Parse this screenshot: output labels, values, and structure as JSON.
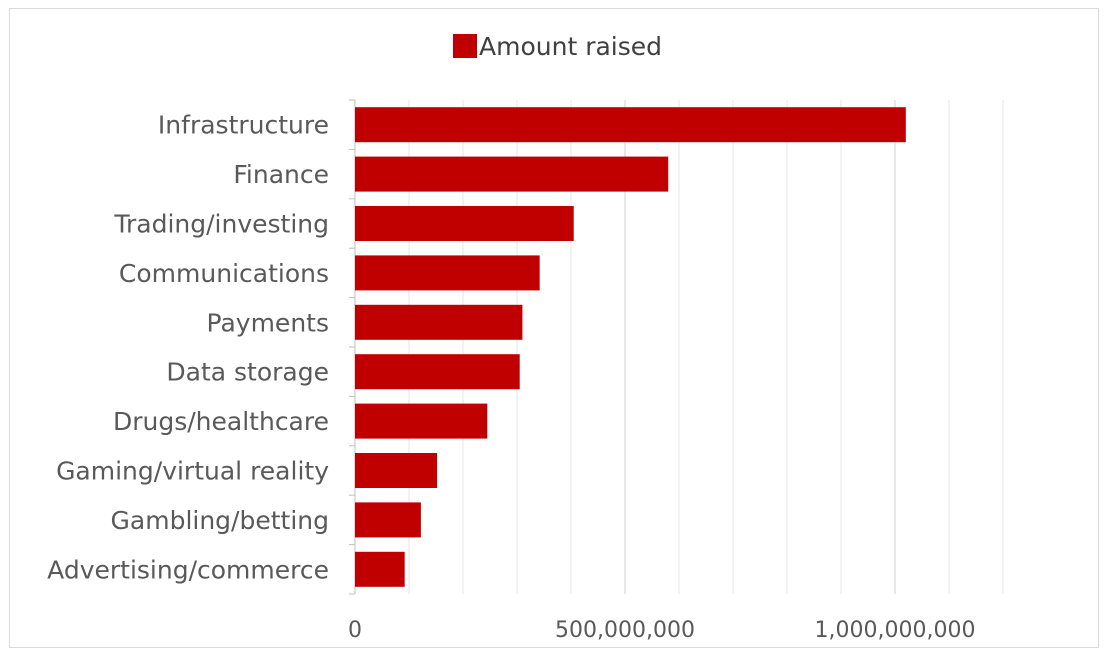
{
  "chart_data": {
    "type": "bar",
    "orientation": "horizontal",
    "categories": [
      "Infrastructure",
      "Finance",
      "Trading/investing",
      "Communications",
      "Payments",
      "Data storage",
      "Drugs/healthcare",
      "Gaming/virtual reality",
      "Gambling/betting",
      "Advertising/commerce"
    ],
    "series": [
      {
        "name": "Amount raised",
        "color": "#c00000",
        "values": [
          1020000000,
          580000000,
          405000000,
          342000000,
          310000000,
          305000000,
          245000000,
          152000000,
          122000000,
          92000000
        ]
      }
    ],
    "xlim": [
      0,
      1200000000
    ],
    "xticks": [
      {
        "value": 0,
        "label": "0"
      },
      {
        "value": 500000000,
        "label": "500,000,000"
      },
      {
        "value": 1000000000,
        "label": "1,000,000,000"
      }
    ],
    "minor_gridline_step": 100000000,
    "grid": true,
    "legend_position": "top",
    "title": "",
    "xlabel": "",
    "ylabel": ""
  }
}
